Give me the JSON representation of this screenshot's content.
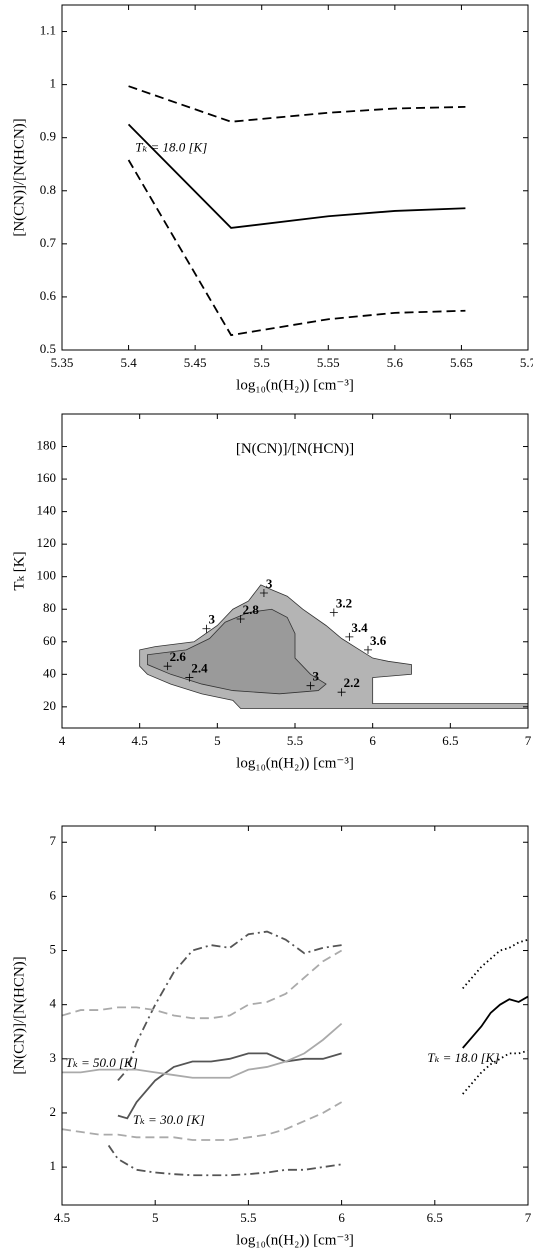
{
  "chart_data": [
    {
      "type": "line",
      "xlabel": "log₁₀(n(H₂)) [cm⁻³]",
      "ylabel": "[N(CN)]/[N(HCN)]",
      "xlim": [
        5.35,
        5.7
      ],
      "xticks": [
        5.35,
        5.4,
        5.45,
        5.5,
        5.55,
        5.6,
        5.65,
        5.7
      ],
      "ylim": [
        0.5,
        1.15
      ],
      "yticks": [
        0.5,
        0.6,
        0.7,
        0.8,
        0.9,
        1,
        1.1
      ],
      "annotations": [
        "Tₖ = 18.0 [K]"
      ],
      "series": [
        {
          "color": "#000000",
          "style": "solid",
          "x": [
            5.4,
            5.477,
            5.55,
            5.6,
            5.653
          ],
          "values": [
            0.925,
            0.73,
            0.752,
            0.762,
            0.767
          ]
        },
        {
          "color": "#000000",
          "style": "dashed",
          "x": [
            5.4,
            5.477,
            5.55,
            5.6,
            5.653
          ],
          "values": [
            0.997,
            0.93,
            0.947,
            0.955,
            0.958
          ]
        },
        {
          "color": "#000000",
          "style": "dashed",
          "x": [
            5.4,
            5.477,
            5.55,
            5.6,
            5.653
          ],
          "values": [
            0.858,
            0.528,
            0.558,
            0.57,
            0.574
          ]
        }
      ]
    },
    {
      "type": "contour",
      "title": "[N(CN)]/[N(HCN)]",
      "xlabel": "log₁₀(n(H₂)) [cm⁻³]",
      "ylabel": "Tₖ [K]",
      "xlim": [
        4,
        7
      ],
      "xticks": [
        4,
        4.5,
        5,
        5.5,
        6,
        6.5,
        7
      ],
      "ylim": [
        7,
        200
      ],
      "yticks": [
        20,
        40,
        60,
        80,
        100,
        120,
        140,
        160,
        180
      ],
      "regions": [
        {
          "color": "#b4b4b4",
          "x": [
            4.5,
            4.6,
            4.85,
            5.0,
            5.1,
            5.2,
            5.28,
            5.35,
            5.45,
            5.55,
            5.7,
            5.8,
            5.9,
            6.0,
            6.1,
            6.25,
            6.25,
            6.0,
            6.0,
            7.0,
            7.0,
            5.15,
            5.1,
            4.9,
            4.7,
            4.55,
            4.5
          ],
          "y": [
            55,
            57,
            60,
            70,
            80,
            85,
            95,
            92,
            88,
            80,
            70,
            62,
            56,
            50,
            48,
            46,
            40,
            38,
            22,
            22,
            19,
            19,
            24,
            28,
            34,
            40,
            45
          ]
        },
        {
          "color": "#9a9a9a",
          "x": [
            4.55,
            4.8,
            4.95,
            5.05,
            5.2,
            5.35,
            5.45,
            5.5,
            5.5,
            5.6,
            5.7,
            5.65,
            5.4,
            5.1,
            4.9,
            4.7,
            4.55
          ],
          "y": [
            52,
            55,
            62,
            72,
            78,
            80,
            75,
            65,
            50,
            40,
            34,
            30,
            28,
            30,
            34,
            40,
            46
          ]
        }
      ],
      "contour_labels": [
        3,
        3.2,
        3,
        2.8,
        3.4,
        3.6,
        2.6,
        2.4,
        3,
        2.2
      ]
    },
    {
      "type": "line",
      "xlabel": "log₁₀(n(H₂)) [cm⁻³]",
      "ylabel": "[N(CN)]/[N(HCN)]",
      "xlim": [
        4.5,
        7
      ],
      "xticks": [
        4.5,
        5,
        5.5,
        6,
        6.5,
        7
      ],
      "ylim": [
        0.3,
        7.3
      ],
      "yticks": [
        1,
        2,
        3,
        4,
        5,
        6,
        7
      ],
      "annotations": [
        "Tₖ = 50.0 [K]",
        "Tₖ = 30.0 [K]",
        "Tₖ = 18.0 [K]"
      ],
      "series": [
        {
          "color": "#555555",
          "style": "solid",
          "x": [
            4.8,
            4.85,
            4.9,
            5.0,
            5.1,
            5.2,
            5.3,
            5.4,
            5.5,
            5.6,
            5.7,
            5.8,
            5.9,
            6.0
          ],
          "values": [
            1.95,
            1.9,
            2.2,
            2.6,
            2.85,
            2.95,
            2.95,
            3.0,
            3.1,
            3.1,
            2.95,
            3.0,
            3.0,
            3.1
          ]
        },
        {
          "color": "#555555",
          "style": "dashdot",
          "x": [
            4.8,
            4.85,
            4.9,
            5.0,
            5.1,
            5.2,
            5.3,
            5.4,
            5.5,
            5.6,
            5.7,
            5.8,
            5.9,
            6.0
          ],
          "values": [
            2.6,
            2.8,
            3.3,
            4.0,
            4.6,
            5.0,
            5.1,
            5.05,
            5.3,
            5.35,
            5.2,
            4.95,
            5.05,
            5.1
          ]
        },
        {
          "color": "#555555",
          "style": "dashdot",
          "x": [
            4.75,
            4.8,
            4.9,
            5.0,
            5.1,
            5.2,
            5.3,
            5.4,
            5.5,
            5.6,
            5.7,
            5.8,
            5.9,
            6.0
          ],
          "values": [
            1.4,
            1.15,
            0.95,
            0.9,
            0.87,
            0.85,
            0.85,
            0.85,
            0.87,
            0.9,
            0.95,
            0.95,
            1.0,
            1.05
          ]
        },
        {
          "color": "#aaaaaa",
          "style": "solid",
          "x": [
            4.5,
            4.6,
            4.7,
            4.8,
            4.9,
            5.0,
            5.1,
            5.2,
            5.3,
            5.4,
            5.5,
            5.6,
            5.7,
            5.8,
            5.9,
            6.0
          ],
          "values": [
            2.75,
            2.75,
            2.8,
            2.8,
            2.8,
            2.75,
            2.7,
            2.65,
            2.65,
            2.65,
            2.8,
            2.85,
            2.95,
            3.1,
            3.35,
            3.65
          ]
        },
        {
          "color": "#aaaaaa",
          "style": "dashed",
          "x": [
            4.5,
            4.6,
            4.7,
            4.8,
            4.9,
            5.0,
            5.1,
            5.2,
            5.3,
            5.4,
            5.5,
            5.6,
            5.7,
            5.8,
            5.9,
            6.0
          ],
          "values": [
            3.8,
            3.9,
            3.9,
            3.95,
            3.95,
            3.9,
            3.8,
            3.75,
            3.75,
            3.8,
            4.0,
            4.05,
            4.2,
            4.5,
            4.8,
            5.0
          ]
        },
        {
          "color": "#aaaaaa",
          "style": "dashed",
          "x": [
            4.5,
            4.6,
            4.7,
            4.8,
            4.9,
            5.0,
            5.1,
            5.2,
            5.3,
            5.4,
            5.5,
            5.6,
            5.7,
            5.8,
            5.9,
            6.0
          ],
          "values": [
            1.7,
            1.65,
            1.6,
            1.6,
            1.55,
            1.55,
            1.55,
            1.5,
            1.5,
            1.5,
            1.55,
            1.6,
            1.7,
            1.85,
            2.0,
            2.2
          ]
        },
        {
          "color": "#000000",
          "style": "solid",
          "x": [
            6.65,
            6.7,
            6.75,
            6.8,
            6.85,
            6.9,
            6.95,
            7.0
          ],
          "values": [
            3.2,
            3.4,
            3.6,
            3.85,
            4.0,
            4.1,
            4.05,
            4.15
          ]
        },
        {
          "color": "#000000",
          "style": "dotted",
          "x": [
            6.65,
            6.7,
            6.75,
            6.8,
            6.85,
            6.9,
            6.95,
            7.0
          ],
          "values": [
            4.3,
            4.5,
            4.7,
            4.85,
            5.0,
            5.05,
            5.15,
            5.2
          ]
        },
        {
          "color": "#000000",
          "style": "dotted",
          "x": [
            6.65,
            6.7,
            6.75,
            6.8,
            6.85,
            6.9,
            6.95,
            7.0
          ],
          "values": [
            2.35,
            2.55,
            2.75,
            2.9,
            3.0,
            3.1,
            3.1,
            3.15
          ]
        }
      ]
    }
  ]
}
